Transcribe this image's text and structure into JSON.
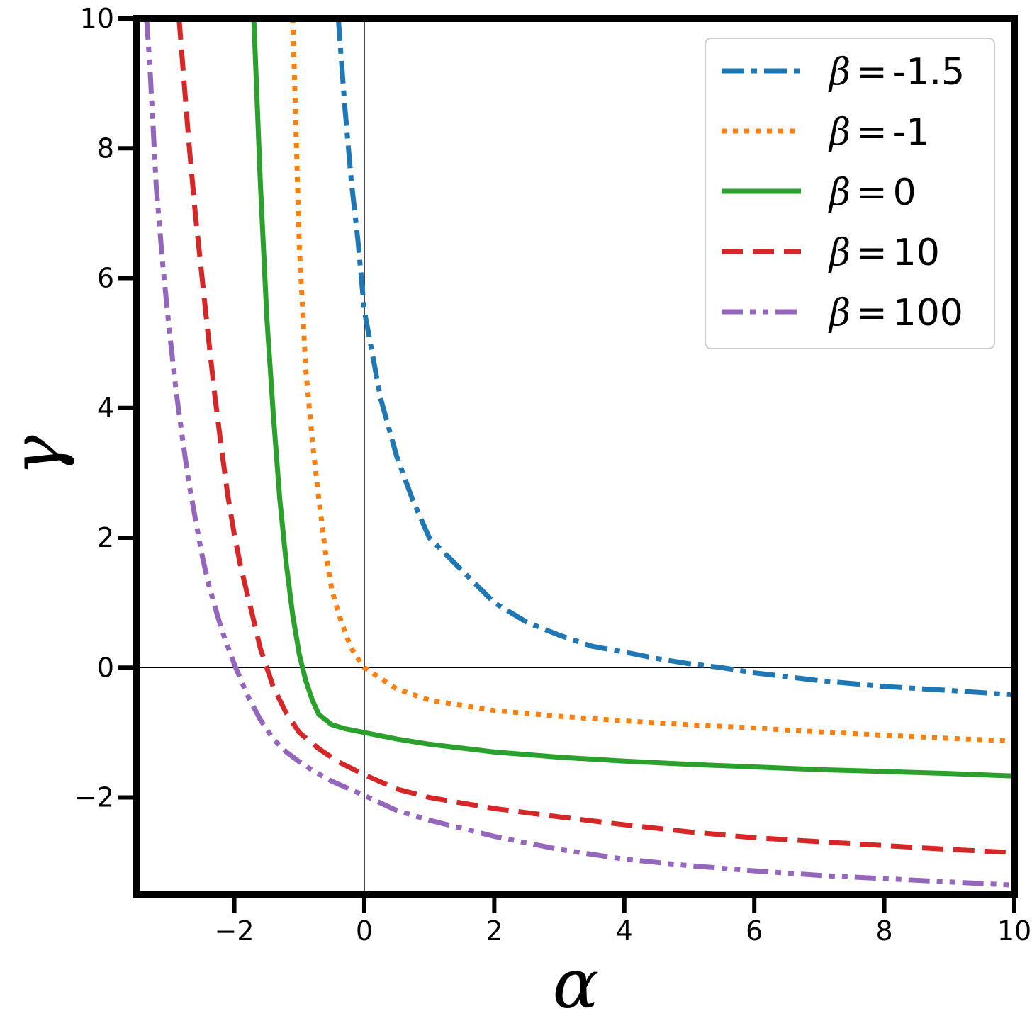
{
  "chart_data": {
    "type": "line",
    "title": "",
    "xlabel": "α",
    "ylabel": "γ",
    "xlim": [
      -3.5,
      10
    ],
    "ylim": [
      -3.5,
      10
    ],
    "xticks": [
      -2,
      0,
      2,
      4,
      6,
      8,
      10
    ],
    "yticks": [
      -2,
      0,
      2,
      4,
      6,
      8,
      10
    ],
    "xtick_labels": [
      "−2",
      "0",
      "2",
      "4",
      "6",
      "8",
      "10"
    ],
    "ytick_labels": [
      "−2",
      "0",
      "2",
      "4",
      "6",
      "8",
      "10"
    ],
    "reference_lines": {
      "x": 0,
      "y": 0
    },
    "grid": false,
    "legend_position": "top-right",
    "series": [
      {
        "name": "β = -1.5",
        "beta_symbol": "β",
        "beta_value": "-1.5",
        "color": "#1f77b4",
        "style": "dash-dot",
        "x": [
          -0.4,
          -0.3,
          -0.2,
          -0.1,
          0,
          0.25,
          0.5,
          0.75,
          1,
          1.5,
          2,
          2.5,
          3,
          3.5,
          4,
          4.5,
          5,
          5.5,
          6,
          7,
          8,
          9,
          10
        ],
        "y": [
          10,
          8.64,
          7.5,
          6.6,
          5.5,
          4.15,
          3.25,
          2.57,
          2.0,
          1.5,
          1.0,
          0.7,
          0.5,
          0.33,
          0.24,
          0.14,
          0.06,
          0.0,
          -0.08,
          -0.2,
          -0.29,
          -0.35,
          -0.42
        ]
      },
      {
        "name": "β = -1",
        "beta_symbol": "β",
        "beta_value": "-1",
        "color": "#ff7f0e",
        "style": "dotted",
        "x": [
          -1.1,
          -1.0,
          -0.9,
          -0.8,
          -0.7,
          -0.6,
          -0.5,
          -0.4,
          -0.3,
          -0.2,
          -0.1,
          0,
          0.5,
          1,
          2,
          3,
          4,
          5,
          6,
          7,
          8,
          9,
          10
        ],
        "y": [
          10,
          6.5,
          4.6,
          3.5,
          2.6,
          1.8,
          1.2,
          0.85,
          0.55,
          0.3,
          0.14,
          0.0,
          -0.33,
          -0.5,
          -0.66,
          -0.75,
          -0.82,
          -0.88,
          -0.93,
          -0.99,
          -1.04,
          -1.09,
          -1.13
        ]
      },
      {
        "name": "β = 0",
        "beta_symbol": "β",
        "beta_value": "0",
        "color": "#2ca02c",
        "style": "solid",
        "x": [
          -1.7,
          -1.6,
          -1.5,
          -1.4,
          -1.3,
          -1.2,
          -1.1,
          -1.0,
          -0.9,
          -0.8,
          -0.7,
          -0.5,
          -0.3,
          0,
          0.5,
          1,
          2,
          3,
          4,
          5,
          6,
          7,
          8,
          9,
          10
        ],
        "y": [
          10,
          7.5,
          5.4,
          3.9,
          2.6,
          1.6,
          0.8,
          0.2,
          -0.2,
          -0.5,
          -0.72,
          -0.88,
          -0.94,
          -1.0,
          -1.1,
          -1.18,
          -1.3,
          -1.38,
          -1.44,
          -1.49,
          -1.53,
          -1.57,
          -1.6,
          -1.63,
          -1.67
        ]
      },
      {
        "name": "β = 10",
        "beta_symbol": "β",
        "beta_value": "10",
        "color": "#d62728",
        "style": "dashed",
        "x": [
          -2.85,
          -2.7,
          -2.6,
          -2.5,
          -2.4,
          -2.3,
          -2.2,
          -2.1,
          -2.0,
          -1.9,
          -1.75,
          -1.6,
          -1.4,
          -1.2,
          -1.0,
          -0.7,
          -0.4,
          0,
          0.5,
          1,
          2,
          3,
          4,
          5,
          6,
          7,
          8,
          9,
          10
        ],
        "y": [
          10,
          8.1,
          7.0,
          6.05,
          5.1,
          4.2,
          3.4,
          2.65,
          2.05,
          1.55,
          0.93,
          0.3,
          -0.3,
          -0.7,
          -1.0,
          -1.25,
          -1.45,
          -1.65,
          -1.87,
          -2.0,
          -2.17,
          -2.3,
          -2.42,
          -2.53,
          -2.62,
          -2.68,
          -2.74,
          -2.8,
          -2.85
        ]
      },
      {
        "name": "β = 100",
        "beta_symbol": "β",
        "beta_value": "100",
        "color": "#9467bd",
        "style": "dash-dot-dot",
        "x": [
          -3.35,
          -3.3,
          -3.2,
          -3.1,
          -3.0,
          -2.9,
          -2.8,
          -2.7,
          -2.6,
          -2.5,
          -2.4,
          -2.3,
          -2.2,
          -2.0,
          -1.8,
          -1.6,
          -1.4,
          -1.2,
          -1.0,
          -0.8,
          -0.5,
          0,
          0.5,
          1,
          2,
          3,
          4,
          5,
          6,
          7,
          8,
          9,
          10
        ],
        "y": [
          10,
          9.3,
          7.4,
          6.2,
          5.2,
          4.3,
          3.55,
          2.85,
          2.3,
          1.75,
          1.3,
          0.95,
          0.6,
          0.05,
          -0.42,
          -0.8,
          -1.1,
          -1.3,
          -1.45,
          -1.58,
          -1.75,
          -1.97,
          -2.2,
          -2.35,
          -2.6,
          -2.8,
          -2.95,
          -3.05,
          -3.13,
          -3.2,
          -3.25,
          -3.3,
          -3.35
        ]
      }
    ]
  }
}
